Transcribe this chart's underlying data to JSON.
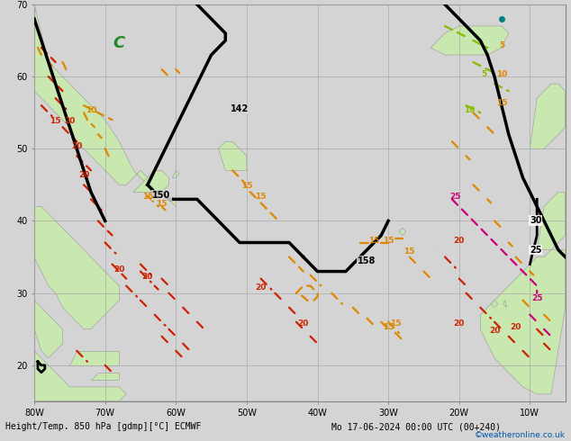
{
  "title_left": "Height/Temp. 850 hPa [gdmp][°C] ECMWF",
  "title_right": "Mo 17-06-2024 00:00 UTC (00+240)",
  "watermark": "©weatheronline.co.uk",
  "bg_ocean": "#d4d4d4",
  "bg_land": "#c8e8b0",
  "grid_color": "#aaaaaa",
  "xlim": [
    -80,
    -5
  ],
  "ylim": [
    15,
    70
  ],
  "xticks": [
    -80,
    -70,
    -60,
    -50,
    -40,
    -30,
    -20,
    -10
  ],
  "yticks": [
    20,
    30,
    40,
    50,
    60,
    70
  ],
  "xlabel_vals": [
    "80W",
    "70W",
    "60W",
    "50W",
    "40W",
    "30W",
    "20W",
    "10W"
  ],
  "ylabel_vals": [
    "20",
    "30",
    "40",
    "50",
    "60",
    "70"
  ],
  "orange": "#dd8800",
  "red": "#cc2200",
  "magenta": "#cc0077",
  "lime": "#88bb00",
  "black_lw": 2.5
}
